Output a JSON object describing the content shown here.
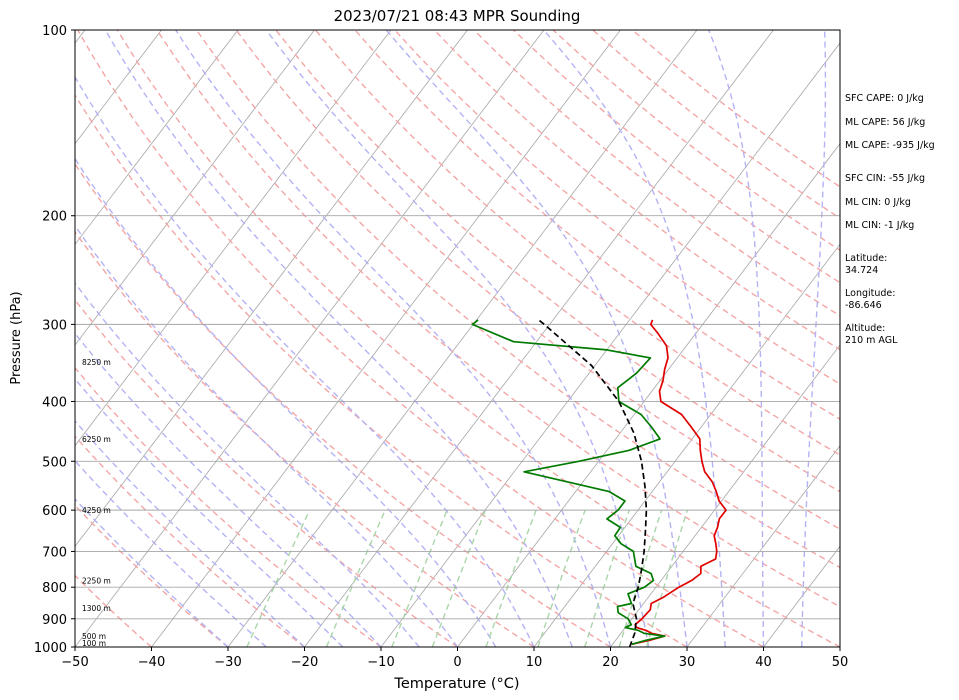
{
  "chart_data": {
    "type": "line",
    "title": "2023/07/21 08:43 MPR Sounding",
    "xlabel": "Temperature (°C)",
    "ylabel": "Pressure (hPa)",
    "xlim": [
      -50,
      50
    ],
    "ylim": [
      1000,
      100
    ],
    "y_scale": "log",
    "skew": "skew-T",
    "grid": true,
    "x_ticks": [
      "−50",
      "−40",
      "−30",
      "−20",
      "−10",
      "0",
      "10",
      "20",
      "30",
      "40",
      "50"
    ],
    "x_tick_values": [
      -50,
      -40,
      -30,
      -20,
      -10,
      0,
      10,
      20,
      30,
      40,
      50
    ],
    "y_ticks": [
      "100",
      "200",
      "300",
      "400",
      "500",
      "600",
      "700",
      "800",
      "900",
      "1000"
    ],
    "y_tick_values": [
      100,
      200,
      300,
      400,
      500,
      600,
      700,
      800,
      900,
      1000
    ],
    "height_labels": [
      {
        "p": 1000,
        "text": "100 m"
      },
      {
        "p": 960,
        "text": "500 m"
      },
      {
        "p": 865,
        "text": "1300 m"
      },
      {
        "p": 780,
        "text": "2250 m"
      },
      {
        "p": 600,
        "text": "4250 m"
      },
      {
        "p": 460,
        "text": "6250 m"
      },
      {
        "p": 345,
        "text": "8250 m"
      }
    ],
    "series": [
      {
        "color": "#e00000",
        "p": [
          990,
          975,
          960,
          950,
          940,
          930,
          920,
          900,
          870,
          850,
          830,
          800,
          780,
          760,
          740,
          720,
          700,
          680,
          660,
          640,
          620,
          600,
          580,
          560,
          540,
          520,
          500,
          480,
          460,
          440,
          420,
          400,
          385,
          370,
          355,
          340,
          325,
          310,
          300,
          295
        ],
        "t": [
          22.5,
          24.5,
          26.0,
          24.0,
          23.0,
          21.5,
          21.0,
          21.3,
          21.5,
          21.0,
          22.0,
          23.0,
          24.0,
          24.5,
          23.8,
          25.0,
          24.4,
          23.5,
          22.5,
          22.1,
          21.5,
          21.5,
          19.7,
          18.4,
          16.9,
          14.9,
          13.5,
          12.2,
          11.0,
          8.7,
          6.2,
          2.2,
          1.0,
          0.4,
          -0.5,
          -1.2,
          -2.6,
          -5.0,
          -6.8,
          -7.0
        ]
      },
      {
        "color": "#007a00",
        "p": [
          990,
          975,
          960,
          950,
          940,
          930,
          920,
          900,
          880,
          860,
          850,
          820,
          800,
          780,
          760,
          740,
          700,
          680,
          660,
          640,
          620,
          600,
          580,
          560,
          540,
          520,
          500,
          480,
          460,
          440,
          420,
          400,
          380,
          360,
          340,
          330,
          320,
          300,
          295
        ],
        "t": [
          22.5,
          24.0,
          26.0,
          23.0,
          22.0,
          20.0,
          20.5,
          19.5,
          17.6,
          16.9,
          18.4,
          17.0,
          18.5,
          19.0,
          18.0,
          15.3,
          13.5,
          11.1,
          9.5,
          9.4,
          6.8,
          7.4,
          7.4,
          4.4,
          -2.0,
          -8.7,
          -2.6,
          2.9,
          5.8,
          3.5,
          0.9,
          -3.3,
          -4.8,
          -3.8,
          -3.5,
          -10.0,
          -23.0,
          -30.1,
          -29.8
        ]
      },
      {
        "color": "#000000",
        "dashed": true,
        "p": [
          1000,
          950,
          900,
          850,
          800,
          750,
          700,
          650,
          600,
          550,
          500,
          450,
          400,
          350,
          300,
          295
        ],
        "t": [
          22.5,
          21.8,
          20.6,
          18.6,
          17.7,
          16.4,
          14.9,
          13.1,
          11.1,
          8.6,
          5.6,
          1.8,
          -3.3,
          -10.4,
          -20.7,
          -21.9
        ]
      }
    ],
    "stats": [
      {
        "text": "SFC CAPE: 0 J/kg"
      },
      {
        "text": "ML CAPE: 56 J/kg"
      },
      {
        "text": "ML CAPE: -935 J/kg"
      },
      {
        "text": "SFC CIN: -55 J/kg"
      },
      {
        "text": "ML CIN: 0 J/kg"
      },
      {
        "text": "ML CIN: -1 J/kg"
      },
      {
        "text": "Latitude:\n34.724"
      },
      {
        "text": "Longitude:\n-86.646"
      },
      {
        "text": "Altitude:\n210 m AGL"
      }
    ],
    "colors": {
      "temperature": "#e00000",
      "dewpoint": "#007a00",
      "parcel": "#000000",
      "dry_adiabat": "#f4a6a6",
      "moist_adiabat": "#b3b3f5",
      "mixing_ratio": "#a9d6a9",
      "isotherm": "#a6a6a6",
      "isobar": "#a6a6a6"
    }
  }
}
